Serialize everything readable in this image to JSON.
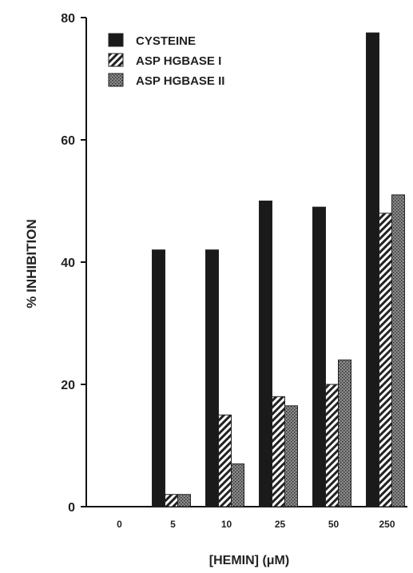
{
  "chart_data": {
    "type": "bar",
    "title": "",
    "xlabel": "[HEMIN]  (μM)",
    "ylabel": "% INHIBITION",
    "categories": [
      "0",
      "5",
      "10",
      "25",
      "50",
      "250"
    ],
    "ylim": [
      0,
      80
    ],
    "yticks": [
      "0",
      "20",
      "40",
      "60",
      "80"
    ],
    "grid": false,
    "legend_position": "top-left",
    "series": [
      {
        "name": "CYSTEINE",
        "values": [
          0,
          42,
          42,
          50,
          49,
          77.5
        ],
        "fill": "solid",
        "color": "#1a1a1a"
      },
      {
        "name": "ASP HGBASE I",
        "values": [
          0,
          2,
          15,
          18,
          20,
          48
        ],
        "fill": "hatch",
        "color": "#333333"
      },
      {
        "name": "ASP HGBASE II",
        "values": [
          0,
          2,
          7,
          16.5,
          24,
          51
        ],
        "fill": "stipple",
        "color": "#777777"
      }
    ]
  }
}
